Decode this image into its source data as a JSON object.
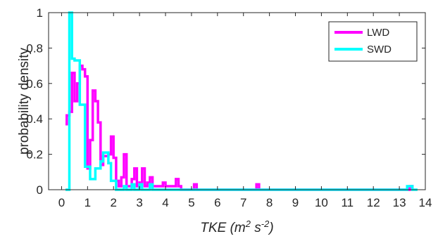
{
  "chart_data": {
    "type": "line",
    "xlabel": "TKE (m² s⁻²)",
    "ylabel": "probability density",
    "xlim": [
      -0.5,
      14
    ],
    "ylim": [
      0,
      1
    ],
    "xticks": [
      "0",
      "1",
      "2",
      "3",
      "4",
      "5",
      "6",
      "7",
      "8",
      "9",
      "10",
      "11",
      "12",
      "13",
      "14"
    ],
    "yticks": [
      "0",
      "0.2",
      "0.4",
      "0.6",
      "0.8",
      "1"
    ],
    "legend_position": "top-right",
    "grid": false,
    "step": true,
    "series": [
      {
        "name": "LWD",
        "color": "#ff00ff",
        "x": [
          0.15,
          0.2,
          0.3,
          0.4,
          0.5,
          0.6,
          0.7,
          0.8,
          0.9,
          1.0,
          1.1,
          1.2,
          1.3,
          1.4,
          1.5,
          1.6,
          1.7,
          1.8,
          1.9,
          2.0,
          2.1,
          2.2,
          2.3,
          2.4,
          2.5,
          2.6,
          2.7,
          2.8,
          2.9,
          3.0,
          3.1,
          3.2,
          3.3,
          3.4,
          3.5,
          3.6,
          3.7,
          3.8,
          3.9,
          4.0,
          4.1,
          4.2,
          4.3,
          4.4,
          4.5,
          4.6,
          4.8,
          5.0,
          5.1,
          5.2,
          7.4,
          7.5,
          7.6,
          13.3,
          13.4,
          13.5
        ],
        "y": [
          0.37,
          0.42,
          0.44,
          0.66,
          0.5,
          0.6,
          0.7,
          0.68,
          0.64,
          0.12,
          0.28,
          0.56,
          0.5,
          0.38,
          0.14,
          0.19,
          0.19,
          0.2,
          0.3,
          0.18,
          0.05,
          0.02,
          0.07,
          0.2,
          0.02,
          0.02,
          0.06,
          0.12,
          0.02,
          0.04,
          0.12,
          0.02,
          0.04,
          0.07,
          0.02,
          0.02,
          0.02,
          0.02,
          0.04,
          0.02,
          0.02,
          0.02,
          0.02,
          0.06,
          0.02,
          0.0,
          0.0,
          0.0,
          0.03,
          0.0,
          0.0,
          0.03,
          0.0,
          0.0,
          0.02,
          0.0
        ]
      },
      {
        "name": "SWD",
        "color": "#00ffff",
        "x": [
          0.15,
          0.2,
          0.3,
          0.4,
          0.5,
          0.6,
          0.7,
          0.8,
          0.9,
          1.0,
          1.1,
          1.2,
          1.3,
          1.4,
          1.5,
          1.6,
          1.7,
          1.8,
          1.9,
          2.0,
          2.1,
          2.2,
          2.3,
          2.4,
          2.5,
          2.6,
          2.7,
          2.8,
          2.9,
          3.0,
          3.1,
          3.2,
          3.3,
          3.4,
          3.5,
          3.6,
          3.7,
          3.8,
          3.9,
          4.0,
          4.2,
          4.4,
          5.0,
          7.5,
          13.2,
          13.3,
          13.4,
          13.5,
          13.6,
          13.7
        ],
        "y": [
          0.0,
          0.0,
          1.0,
          0.74,
          0.73,
          0.73,
          0.48,
          0.48,
          0.13,
          0.13,
          0.06,
          0.06,
          0.12,
          0.12,
          0.16,
          0.21,
          0.21,
          0.15,
          0.05,
          0.05,
          0.0,
          0.0,
          0.0,
          0.02,
          0.0,
          0.0,
          0.03,
          0.0,
          0.0,
          0.03,
          0.0,
          0.0,
          0.0,
          0.03,
          0.0,
          0.0,
          0.0,
          0.0,
          0.0,
          0.0,
          0.0,
          0.0,
          0.0,
          0.0,
          0.0,
          0.02,
          0.02,
          0.0,
          0.0,
          0.0
        ]
      }
    ]
  }
}
